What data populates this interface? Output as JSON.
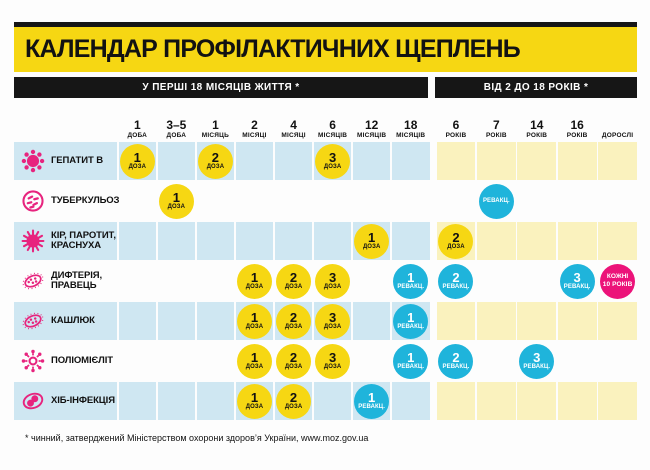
{
  "title": "КАЛЕНДАР ПРОФІЛАКТИЧНИХ ЩЕПЛЕНЬ",
  "section_headers": {
    "months": "У ПЕРШІ 18 МІСЯЦІВ ЖИТТЯ *",
    "years": "ВІД 2 ДО 18 РОКІВ *"
  },
  "columns": [
    {
      "value": "1",
      "unit": "ДОБА",
      "section": "months"
    },
    {
      "value": "3–5",
      "unit": "ДОБА",
      "section": "months"
    },
    {
      "value": "1",
      "unit": "МІСЯЦЬ",
      "section": "months"
    },
    {
      "value": "2",
      "unit": "МІСЯЦІ",
      "section": "months"
    },
    {
      "value": "4",
      "unit": "МІСЯЦІ",
      "section": "months"
    },
    {
      "value": "6",
      "unit": "МІСЯЦІВ",
      "section": "months"
    },
    {
      "value": "12",
      "unit": "МІСЯЦІВ",
      "section": "months"
    },
    {
      "value": "18",
      "unit": "МІСЯЦІВ",
      "section": "months"
    },
    {
      "value": "6",
      "unit": "РОКІВ",
      "section": "years"
    },
    {
      "value": "7",
      "unit": "РОКІВ",
      "section": "years"
    },
    {
      "value": "14",
      "unit": "РОКІВ",
      "section": "years"
    },
    {
      "value": "16",
      "unit": "РОКІВ",
      "section": "years"
    },
    {
      "value": "",
      "unit": "ДОРОСЛІ",
      "section": "years"
    }
  ],
  "rows": [
    {
      "disease": "ГЕПАТИТ В",
      "icon": "hepatitis-b-virus-icon",
      "shaded": true,
      "marks": [
        {
          "col": 0,
          "type": "dose",
          "top": "1",
          "bottom": "ДОЗА"
        },
        {
          "col": 2,
          "type": "dose",
          "top": "2",
          "bottom": "ДОЗА"
        },
        {
          "col": 5,
          "type": "dose",
          "top": "3",
          "bottom": "ДОЗА"
        }
      ]
    },
    {
      "disease": "ТУБЕРКУЛЬОЗ",
      "icon": "tuberculosis-bacteria-icon",
      "shaded": false,
      "marks": [
        {
          "col": 1,
          "type": "dose",
          "top": "1",
          "bottom": "ДОЗА"
        },
        {
          "col": 9,
          "type": "revacc",
          "top": "",
          "bottom": "РЕВАКЦ."
        }
      ]
    },
    {
      "disease": "КІР, ПАРОТИТ, КРАСНУХА",
      "icon": "measles-virus-icon",
      "shaded": true,
      "marks": [
        {
          "col": 6,
          "type": "dose",
          "top": "1",
          "bottom": "ДОЗА"
        },
        {
          "col": 8,
          "type": "dose",
          "top": "2",
          "bottom": "ДОЗА"
        }
      ]
    },
    {
      "disease": "ДИФТЕРІЯ, ПРАВЕЦЬ",
      "icon": "diphtheria-bacterium-icon",
      "shaded": false,
      "marks": [
        {
          "col": 3,
          "type": "dose",
          "top": "1",
          "bottom": "ДОЗА"
        },
        {
          "col": 4,
          "type": "dose",
          "top": "2",
          "bottom": "ДОЗА"
        },
        {
          "col": 5,
          "type": "dose",
          "top": "3",
          "bottom": "ДОЗА"
        },
        {
          "col": 7,
          "type": "revacc",
          "top": "1",
          "bottom": "РЕВАКЦ."
        },
        {
          "col": 8,
          "type": "revacc",
          "top": "2",
          "bottom": "РЕВАКЦ."
        },
        {
          "col": 11,
          "type": "revacc",
          "top": "3",
          "bottom": "РЕВАКЦ."
        },
        {
          "col": 12,
          "type": "every",
          "top": "КОЖНІ",
          "bottom": "10 РОКІВ"
        }
      ]
    },
    {
      "disease": "КАШЛЮК",
      "icon": "pertussis-bacterium-icon",
      "shaded": true,
      "marks": [
        {
          "col": 3,
          "type": "dose",
          "top": "1",
          "bottom": "ДОЗА"
        },
        {
          "col": 4,
          "type": "dose",
          "top": "2",
          "bottom": "ДОЗА"
        },
        {
          "col": 5,
          "type": "dose",
          "top": "3",
          "bottom": "ДОЗА"
        },
        {
          "col": 7,
          "type": "revacc",
          "top": "1",
          "bottom": "РЕВАКЦ."
        }
      ]
    },
    {
      "disease": "ПОЛІОМІЄЛІТ",
      "icon": "polio-virus-icon",
      "shaded": false,
      "marks": [
        {
          "col": 3,
          "type": "dose",
          "top": "1",
          "bottom": "ДОЗА"
        },
        {
          "col": 4,
          "type": "dose",
          "top": "2",
          "bottom": "ДОЗА"
        },
        {
          "col": 5,
          "type": "dose",
          "top": "3",
          "bottom": "ДОЗА"
        },
        {
          "col": 7,
          "type": "revacc",
          "top": "1",
          "bottom": "РЕВАКЦ."
        },
        {
          "col": 8,
          "type": "revacc",
          "top": "2",
          "bottom": "РЕВАКЦ."
        },
        {
          "col": 10,
          "type": "revacc",
          "top": "3",
          "bottom": "РЕВАКЦ."
        }
      ]
    },
    {
      "disease": "ХІБ-ІНФЕКЦІЯ",
      "icon": "hib-bacteria-icon",
      "shaded": true,
      "marks": [
        {
          "col": 3,
          "type": "dose",
          "top": "1",
          "bottom": "ДОЗА"
        },
        {
          "col": 4,
          "type": "dose",
          "top": "2",
          "bottom": "ДОЗА"
        },
        {
          "col": 6,
          "type": "revacc",
          "top": "1",
          "bottom": "РЕВАКЦ."
        }
      ]
    }
  ],
  "footnote": "* чинний, затверджений Міністерством охорони здоров’я України, www.moz.gov.ua",
  "colors": {
    "accent_yellow": "#F6D713",
    "bar_black": "#161616",
    "cell_blue": "#CFE7F2",
    "cell_yellow": "#FAF2BE",
    "dose_circle": "#F6D713",
    "revaccination_circle": "#1FB4DB",
    "every_10_years_circle": "#EC1379",
    "pathogen_icon_magenta": "#E7247E"
  }
}
